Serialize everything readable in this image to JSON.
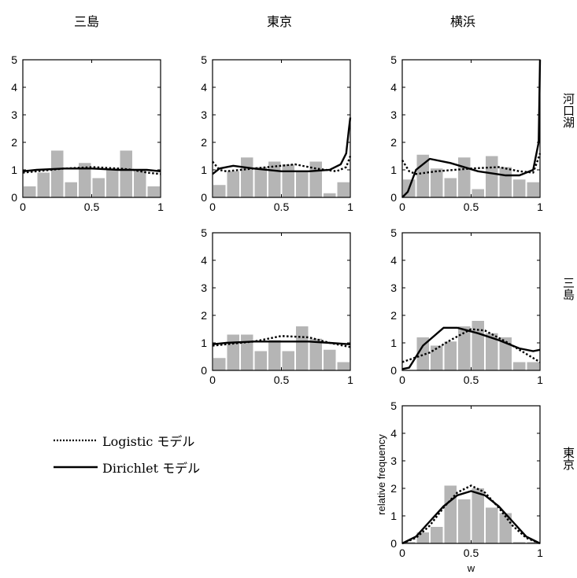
{
  "columns": [
    "三島",
    "東京",
    "横浜"
  ],
  "rows": [
    "河口湖",
    "三島",
    "東京"
  ],
  "legend": [
    {
      "label": "Logistic モデル",
      "style": "dotted"
    },
    {
      "label": "Dirichlet モデル",
      "style": "solid"
    }
  ],
  "colors": {
    "bar": "#b5b5b5",
    "line": "#000000",
    "frame": "#000000"
  },
  "axis_labels": {
    "x": "w",
    "y": "relative frequency"
  },
  "chart_data": [
    {
      "type": "bar",
      "panel": "河口湖-三島",
      "x": [
        0.05,
        0.15,
        0.25,
        0.35,
        0.45,
        0.55,
        0.65,
        0.75,
        0.85,
        0.95
      ],
      "values": [
        0.4,
        0.9,
        1.7,
        0.55,
        1.25,
        0.7,
        1.0,
        1.7,
        1.0,
        0.4
      ],
      "logistic": [
        [
          0,
          0.9
        ],
        [
          0.1,
          0.95
        ],
        [
          0.2,
          1.0
        ],
        [
          0.3,
          1.05
        ],
        [
          0.5,
          1.1
        ],
        [
          0.7,
          1.05
        ],
        [
          0.8,
          1.0
        ],
        [
          0.9,
          0.9
        ],
        [
          1,
          0.85
        ]
      ],
      "dirichlet": [
        [
          0,
          0.95
        ],
        [
          0.1,
          1.0
        ],
        [
          0.3,
          1.05
        ],
        [
          0.5,
          1.05
        ],
        [
          0.7,
          1.0
        ],
        [
          0.9,
          1.0
        ],
        [
          1,
          0.95
        ]
      ],
      "xlim": [
        0,
        1
      ],
      "ylim": [
        0,
        5
      ],
      "xticks": [
        "0",
        "0.5",
        "1"
      ],
      "yticks": [
        "0",
        "1",
        "2",
        "3",
        "4",
        "5"
      ]
    },
    {
      "type": "bar",
      "panel": "河口湖-東京",
      "x": [
        0.05,
        0.15,
        0.25,
        0.35,
        0.45,
        0.55,
        0.65,
        0.75,
        0.85,
        0.95
      ],
      "values": [
        0.45,
        0.95,
        1.45,
        1.1,
        1.3,
        1.2,
        0.95,
        1.3,
        0.15,
        0.55
      ],
      "logistic": [
        [
          0,
          1.3
        ],
        [
          0.05,
          1.0
        ],
        [
          0.1,
          0.95
        ],
        [
          0.3,
          1.05
        ],
        [
          0.5,
          1.15
        ],
        [
          0.6,
          1.2
        ],
        [
          0.75,
          1.05
        ],
        [
          0.9,
          0.95
        ],
        [
          0.97,
          1.1
        ],
        [
          1,
          1.5
        ]
      ],
      "dirichlet": [
        [
          0,
          0.85
        ],
        [
          0.05,
          1.05
        ],
        [
          0.15,
          1.15
        ],
        [
          0.3,
          1.05
        ],
        [
          0.5,
          0.95
        ],
        [
          0.7,
          0.95
        ],
        [
          0.85,
          1.0
        ],
        [
          0.93,
          1.2
        ],
        [
          0.97,
          1.6
        ],
        [
          0.99,
          2.5
        ],
        [
          1,
          2.9
        ]
      ],
      "xlim": [
        0,
        1
      ],
      "ylim": [
        0,
        5
      ],
      "xticks": [
        "0",
        "0.5",
        "1"
      ],
      "yticks": [
        "0",
        "1",
        "2",
        "3",
        "4",
        "5"
      ]
    },
    {
      "type": "bar",
      "panel": "河口湖-横浜",
      "x": [
        0.05,
        0.15,
        0.25,
        0.35,
        0.45,
        0.55,
        0.65,
        0.75,
        0.85,
        0.95
      ],
      "values": [
        0.65,
        1.55,
        1.05,
        0.7,
        1.45,
        0.3,
        1.5,
        1.1,
        0.65,
        0.55
      ],
      "logistic": [
        [
          0,
          1.35
        ],
        [
          0.05,
          0.95
        ],
        [
          0.1,
          0.85
        ],
        [
          0.25,
          0.95
        ],
        [
          0.5,
          1.05
        ],
        [
          0.7,
          1.1
        ],
        [
          0.85,
          0.95
        ],
        [
          0.95,
          0.9
        ],
        [
          0.98,
          1.3
        ],
        [
          1,
          1.6
        ]
      ],
      "dirichlet": [
        [
          0,
          0.0
        ],
        [
          0.04,
          0.2
        ],
        [
          0.1,
          1.0
        ],
        [
          0.2,
          1.4
        ],
        [
          0.35,
          1.25
        ],
        [
          0.55,
          0.95
        ],
        [
          0.75,
          0.8
        ],
        [
          0.85,
          0.8
        ],
        [
          0.95,
          1.0
        ],
        [
          0.99,
          2.0
        ],
        [
          1,
          5.0
        ]
      ],
      "xlim": [
        0,
        1
      ],
      "ylim": [
        0,
        5
      ],
      "xticks": [
        "0",
        "0.5",
        "1"
      ],
      "yticks": [
        "0",
        "1",
        "2",
        "3",
        "4",
        "5"
      ]
    },
    {
      "type": "bar",
      "panel": "三島-東京",
      "x": [
        0.05,
        0.15,
        0.25,
        0.35,
        0.45,
        0.55,
        0.65,
        0.75,
        0.85,
        0.95
      ],
      "values": [
        0.45,
        1.3,
        1.3,
        0.7,
        1.1,
        0.7,
        1.6,
        1.15,
        0.75,
        0.3
      ],
      "logistic": [
        [
          0,
          0.9
        ],
        [
          0.1,
          0.95
        ],
        [
          0.3,
          1.05
        ],
        [
          0.5,
          1.25
        ],
        [
          0.7,
          1.2
        ],
        [
          0.85,
          1.0
        ],
        [
          1,
          0.85
        ]
      ],
      "dirichlet": [
        [
          0,
          0.95
        ],
        [
          0.1,
          1.0
        ],
        [
          0.3,
          1.05
        ],
        [
          0.5,
          1.05
        ],
        [
          0.7,
          1.05
        ],
        [
          0.85,
          1.0
        ],
        [
          1,
          0.95
        ]
      ],
      "xlim": [
        0,
        1
      ],
      "ylim": [
        0,
        5
      ],
      "xticks": [
        "0",
        "0.5",
        "1"
      ],
      "yticks": [
        "0",
        "1",
        "2",
        "3",
        "4",
        "5"
      ]
    },
    {
      "type": "bar",
      "panel": "三島-横浜",
      "x": [
        0.05,
        0.15,
        0.25,
        0.35,
        0.45,
        0.55,
        0.65,
        0.75,
        0.85,
        0.95
      ],
      "values": [
        0.0,
        1.2,
        0.9,
        1.05,
        1.6,
        1.8,
        1.35,
        1.2,
        0.3,
        0.3
      ],
      "logistic": [
        [
          0,
          0.3
        ],
        [
          0.2,
          0.65
        ],
        [
          0.35,
          1.1
        ],
        [
          0.5,
          1.5
        ],
        [
          0.6,
          1.45
        ],
        [
          0.75,
          1.05
        ],
        [
          0.9,
          0.6
        ],
        [
          1,
          0.3
        ]
      ],
      "dirichlet": [
        [
          0,
          0.05
        ],
        [
          0.05,
          0.1
        ],
        [
          0.15,
          0.9
        ],
        [
          0.3,
          1.55
        ],
        [
          0.4,
          1.55
        ],
        [
          0.55,
          1.35
        ],
        [
          0.7,
          1.1
        ],
        [
          0.85,
          0.8
        ],
        [
          0.95,
          0.7
        ],
        [
          1,
          0.75
        ]
      ],
      "xlim": [
        0,
        1
      ],
      "ylim": [
        0,
        5
      ],
      "xticks": [
        "0",
        "0.5",
        "1"
      ],
      "yticks": [
        "0",
        "1",
        "2",
        "3",
        "4",
        "5"
      ]
    },
    {
      "type": "bar",
      "panel": "東京-横浜",
      "x": [
        0.05,
        0.15,
        0.25,
        0.35,
        0.45,
        0.55,
        0.65,
        0.75,
        0.85,
        0.95
      ],
      "values": [
        0.05,
        0.4,
        0.6,
        2.1,
        1.6,
        2.0,
        1.3,
        1.1,
        0.05,
        0.05
      ],
      "logistic": [
        [
          0,
          0.0
        ],
        [
          0.1,
          0.2
        ],
        [
          0.2,
          0.65
        ],
        [
          0.3,
          1.3
        ],
        [
          0.4,
          1.85
        ],
        [
          0.5,
          2.1
        ],
        [
          0.6,
          1.85
        ],
        [
          0.7,
          1.3
        ],
        [
          0.8,
          0.65
        ],
        [
          0.9,
          0.2
        ],
        [
          1,
          0.0
        ]
      ],
      "dirichlet": [
        [
          0,
          0.0
        ],
        [
          0.1,
          0.25
        ],
        [
          0.2,
          0.8
        ],
        [
          0.3,
          1.35
        ],
        [
          0.4,
          1.75
        ],
        [
          0.5,
          1.9
        ],
        [
          0.6,
          1.75
        ],
        [
          0.7,
          1.35
        ],
        [
          0.8,
          0.8
        ],
        [
          0.9,
          0.25
        ],
        [
          1,
          0.0
        ]
      ],
      "xlim": [
        0,
        1
      ],
      "ylim": [
        0,
        5
      ],
      "xlabel": "w",
      "ylabel": "relative frequency",
      "xticks": [
        "0",
        "0.5",
        "1"
      ],
      "yticks": [
        "0",
        "1",
        "2",
        "3",
        "4",
        "5"
      ]
    }
  ]
}
